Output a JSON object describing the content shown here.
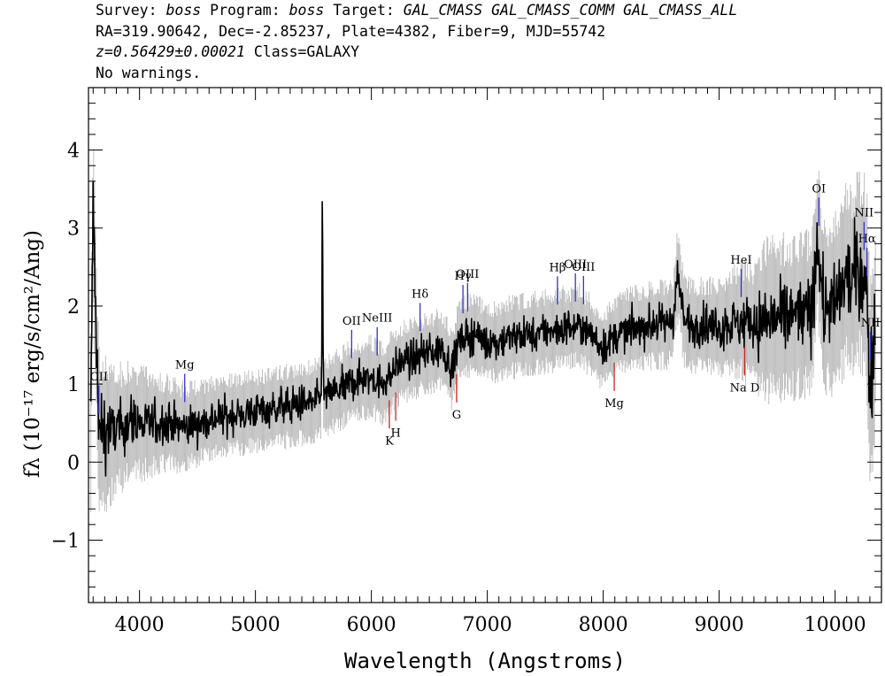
{
  "header": {
    "survey_label": "Survey:",
    "survey_value": "boss",
    "program_label": "Program:",
    "program_value": "boss",
    "target_label": "Target:",
    "target_value": "GAL_CMASS GAL_CMASS_COMM GAL_CMASS_ALL",
    "coords": "RA=319.90642, Dec=-2.85237, Plate=4382, Fiber=9, MJD=55742",
    "redshift": "z=0.56429±0.00021",
    "class_text": "Class=GALAXY",
    "warnings": "No warnings."
  },
  "chart_data": {
    "type": "line",
    "xlabel": "Wavelength (Angstroms)",
    "ylabel": "fλ (10⁻¹⁷ erg/s/cm²/Ang)",
    "xlim": [
      3560,
      10400
    ],
    "ylim": [
      -1.8,
      4.8
    ],
    "x_ticks": [
      4000,
      5000,
      6000,
      7000,
      8000,
      9000,
      10000
    ],
    "x_tick_labels": [
      "4000",
      "5000",
      "6000",
      "7000",
      "8000",
      "9000",
      "10000"
    ],
    "y_ticks": [
      -1,
      0,
      1,
      2,
      3,
      4
    ],
    "y_tick_labels": [
      "−1",
      "0",
      "1",
      "2",
      "3",
      "4"
    ],
    "grid": false,
    "series": [
      {
        "role": "spectrum",
        "color": "#000000",
        "x": [
          3580,
          3600,
          3650,
          3700,
          3800,
          3900,
          4000,
          4200,
          4400,
          4600,
          4800,
          5000,
          5200,
          5400,
          5550,
          5570,
          5577,
          5585,
          5600,
          5700,
          5800,
          5900,
          6000,
          6100,
          6200,
          6300,
          6400,
          6500,
          6600,
          6700,
          6750,
          6800,
          6900,
          7000,
          7200,
          7400,
          7600,
          7800,
          8000,
          8100,
          8200,
          8400,
          8600,
          8640,
          8700,
          8800,
          9000,
          9200,
          9300,
          9400,
          9500,
          9600,
          9700,
          9800,
          9850,
          9900,
          9950,
          10000,
          10050,
          10100,
          10150,
          10200,
          10250,
          10280,
          10300,
          10350
        ],
        "y": [
          0.5,
          3.3,
          0.3,
          0.4,
          0.4,
          0.5,
          0.5,
          0.5,
          0.45,
          0.55,
          0.6,
          0.65,
          0.7,
          0.75,
          0.8,
          0.8,
          3.95,
          0.85,
          0.85,
          0.9,
          1.0,
          1.05,
          1.1,
          1.0,
          1.2,
          1.3,
          1.35,
          1.4,
          1.45,
          1.2,
          1.55,
          1.6,
          1.65,
          1.5,
          1.6,
          1.65,
          1.7,
          1.75,
          1.45,
          1.6,
          1.7,
          1.75,
          1.8,
          2.4,
          1.8,
          1.75,
          1.75,
          1.8,
          1.75,
          1.8,
          1.85,
          1.85,
          1.9,
          1.9,
          2.9,
          1.95,
          2.0,
          2.0,
          2.2,
          2.4,
          2.3,
          2.5,
          2.4,
          2.0,
          0.9,
          1.8
        ]
      },
      {
        "role": "error",
        "color": "#bfbfbf",
        "x": [
          3580,
          3800,
          4200,
          4600,
          5000,
          5400,
          5800,
          6200,
          6600,
          7000,
          7400,
          7800,
          8200,
          8600,
          9000,
          9300,
          9400,
          9500,
          9600,
          9800,
          10000,
          10200,
          10350
        ],
        "y": [
          0.6,
          0.4,
          0.3,
          0.25,
          0.25,
          0.25,
          0.25,
          0.25,
          0.25,
          0.25,
          0.25,
          0.25,
          0.25,
          0.28,
          0.3,
          0.4,
          0.5,
          0.5,
          0.5,
          0.5,
          0.55,
          0.6,
          0.7
        ]
      }
    ],
    "emission_lines": [
      {
        "label": "CII",
        "x": 3650
      },
      {
        "label": "Mg",
        "x": 4390
      },
      {
        "label": "OII",
        "x": 5830
      },
      {
        "label": "NeIII",
        "x": 6050
      },
      {
        "label": "Hδ",
        "x": 6420
      },
      {
        "label": "Hγ",
        "x": 6790
      },
      {
        "label": "OIII",
        "x": 6830
      },
      {
        "label": "Hβ",
        "x": 7605
      },
      {
        "label": "OIII",
        "x": 7760
      },
      {
        "label": "OIII",
        "x": 7830
      },
      {
        "label": "HeI",
        "x": 9190
      },
      {
        "label": "OI",
        "x": 9860
      },
      {
        "label": "NII",
        "x": 10250
      },
      {
        "label": "Hα",
        "x": 10275
      },
      {
        "label": "NII",
        "x": 10305
      }
    ],
    "absorption_lines": [
      {
        "label": "K",
        "x": 6155
      },
      {
        "label": "H",
        "x": 6210
      },
      {
        "label": "G",
        "x": 6735
      },
      {
        "label": "Mg",
        "x": 8095
      },
      {
        "label": "Na D",
        "x": 9220
      }
    ]
  }
}
